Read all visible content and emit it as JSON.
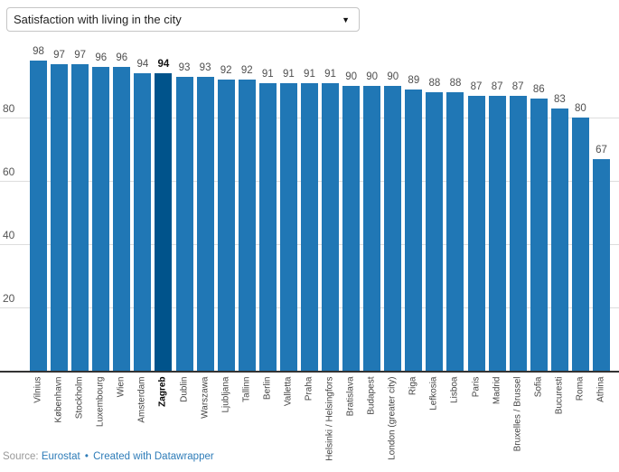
{
  "dropdown": {
    "selected": "Satisfaction with living in the city",
    "arrow": "▼"
  },
  "chart_data": {
    "type": "bar",
    "title": "Satisfaction with living in the city",
    "categories": [
      "Vilnius",
      "København",
      "Stockholm",
      "Luxembourg",
      "Wien",
      "Amsterdam",
      "Zagreb",
      "Dublin",
      "Warszawa",
      "Ljubljana",
      "Tallinn",
      "Berlin",
      "Valletta",
      "Praha",
      "Helsinki / Helsingfors",
      "Bratislava",
      "Budapest",
      "London (greater city)",
      "Riga",
      "Lefkosia",
      "Lisboa",
      "Paris",
      "Madrid",
      "Bruxelles / Brussel",
      "Sofia",
      "Bucuresti",
      "Roma",
      "Athina"
    ],
    "values": [
      98,
      97,
      97,
      96,
      96,
      94,
      94,
      93,
      93,
      92,
      92,
      91,
      91,
      91,
      91,
      90,
      90,
      90,
      89,
      88,
      88,
      87,
      87,
      87,
      86,
      83,
      80,
      67
    ],
    "highlight_category": "Zagreb",
    "highlight_index": 6,
    "value_labels": true,
    "xlabel": "",
    "ylabel": "",
    "yticks": [
      20,
      40,
      60,
      80
    ],
    "ylim": [
      0,
      100
    ],
    "grid": true,
    "legend": "none",
    "bar_color": "#2077b5",
    "highlight_color": "#00538b",
    "gridline_color": "#dddddd",
    "axis_color": "#333333"
  },
  "footer": {
    "prefix": "Source:",
    "source_link": "Eurostat",
    "separator": "•",
    "credit_link": "Created with Datawrapper"
  }
}
